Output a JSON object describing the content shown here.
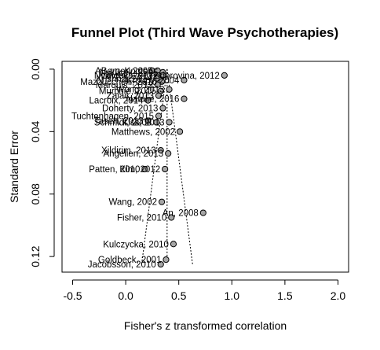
{
  "chart_data": {
    "type": "scatter",
    "title": "Funnel Plot (Third Wave Psychotherapies)",
    "xlabel": "Fisher's z transformed correlation",
    "ylabel": "Standard Error",
    "xlim": [
      -0.6,
      2.1
    ],
    "ylim": [
      0.13,
      -0.005
    ],
    "y_reversed": true,
    "x_ticks": [
      "-0.5",
      "0.0",
      "0.5",
      "1.0",
      "1.5",
      "2.0"
    ],
    "x_tick_values": [
      -0.5,
      0.0,
      0.5,
      1.0,
      1.5,
      2.0
    ],
    "y_ticks": [
      "0.00",
      "0.04",
      "0.08",
      "0.12"
    ],
    "y_tick_values": [
      0.0,
      0.04,
      0.08,
      0.12
    ],
    "grid": false,
    "summary_estimate": 0.39,
    "funnel": {
      "center": 0.39,
      "se_max": 0.125,
      "left_bottom": 0.15,
      "right_bottom": 0.63
    },
    "points": [
      {
        "label": "Koots",
        "x": 0.25,
        "y": 0.001
      },
      {
        "label": "ABerger, 2005",
        "x": 0.3,
        "y": 0.001
      },
      {
        "label": "Nyklicek, 2005",
        "x": 0.35,
        "y": 0.002
      },
      {
        "label": "Nyklicek, 2013",
        "x": 0.3,
        "y": 0.004
      },
      {
        "label": "Lavrova, 2012",
        "x": 0.35,
        "y": 0.004
      },
      {
        "label": "Fedorovina, 2012",
        "x": 0.93,
        "y": 0.004
      },
      {
        "label": "Krishna, 2014",
        "x": 0.29,
        "y": 0.006
      },
      {
        "label": "Kroupy, 2004",
        "x": 0.55,
        "y": 0.007
      },
      {
        "label": "Mazzucchelli, 2010",
        "x": 0.34,
        "y": 0.008
      },
      {
        "label": "Marquis, 2012",
        "x": 0.3,
        "y": 0.01
      },
      {
        "label": "Wong, 2013",
        "x": 0.41,
        "y": 0.013
      },
      {
        "label": "Murchie, 2015",
        "x": 0.33,
        "y": 0.014
      },
      {
        "label": "Zaiac, 2013",
        "x": 0.31,
        "y": 0.017
      },
      {
        "label": "Natalie, 2016",
        "x": 0.55,
        "y": 0.019
      },
      {
        "label": "Lacroix, 2014",
        "x": 0.21,
        "y": 0.02
      },
      {
        "label": "Doherty, 2013",
        "x": 0.35,
        "y": 0.025
      },
      {
        "label": "Tuchtenhagen, 2015",
        "x": 0.31,
        "y": 0.03
      },
      {
        "label": "Taseh, 2013",
        "x": 0.21,
        "y": 0.033
      },
      {
        "label": "Schmidt, 2008",
        "x": 0.29,
        "y": 0.034
      },
      {
        "label": "Kiss, 2013",
        "x": 0.41,
        "y": 0.034
      },
      {
        "label": "Matthews, 2002",
        "x": 0.51,
        "y": 0.04
      },
      {
        "label": "Xildirim, 2013",
        "x": 0.33,
        "y": 0.052
      },
      {
        "label": "Angelien, 2013",
        "x": 0.4,
        "y": 0.054
      },
      {
        "label": "Patten, 2010",
        "x": 0.18,
        "y": 0.064
      },
      {
        "label": "Kim, 2012",
        "x": 0.37,
        "y": 0.064
      },
      {
        "label": "Wang, 2002",
        "x": 0.34,
        "y": 0.085
      },
      {
        "label": "An, 2008",
        "x": 0.73,
        "y": 0.092
      },
      {
        "label": "Fisher, 2010",
        "x": 0.43,
        "y": 0.095
      },
      {
        "label": "Kulczycka, 2010",
        "x": 0.45,
        "y": 0.112
      },
      {
        "label": "Goldbeck, 2001",
        "x": 0.38,
        "y": 0.122
      },
      {
        "label": "Jacobsson, 2010",
        "x": 0.33,
        "y": 0.125
      }
    ]
  }
}
